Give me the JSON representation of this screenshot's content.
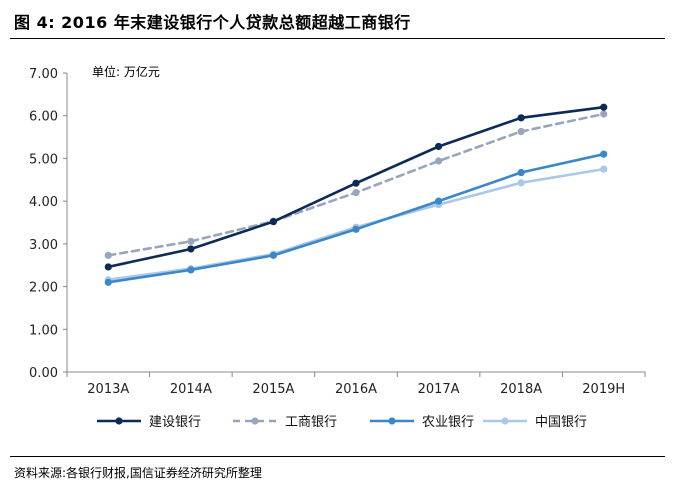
{
  "header": {
    "title": "图 4:  2016 年末建设银行个人贷款总额超越工商银行"
  },
  "footer": {
    "source": "资料来源:各银行财报,国信证券经济研究所整理"
  },
  "chart_data": {
    "type": "line",
    "title": "",
    "unit_label": "单位: 万亿元",
    "xlabel": "",
    "ylabel": "",
    "categories": [
      "2013A",
      "2014A",
      "2015A",
      "2016A",
      "2017A",
      "2018A",
      "2019H"
    ],
    "ylim": [
      0,
      7
    ],
    "yticks": [
      "0.00",
      "1.00",
      "2.00",
      "3.00",
      "4.00",
      "5.00",
      "6.00",
      "7.00"
    ],
    "grid": false,
    "legend_position": "bottom",
    "series": [
      {
        "name": "建设银行",
        "color": "#0d2b57",
        "dashed": false,
        "values": [
          2.46,
          2.88,
          3.52,
          4.42,
          5.28,
          5.95,
          6.2
        ]
      },
      {
        "name": "工商银行",
        "color": "#98a6bd",
        "dashed": true,
        "values": [
          2.73,
          3.06,
          3.53,
          4.2,
          4.94,
          5.63,
          6.04
        ]
      },
      {
        "name": "农业银行",
        "color": "#3b87c8",
        "dashed": false,
        "values": [
          2.1,
          2.39,
          2.73,
          3.34,
          4.0,
          4.67,
          5.1
        ]
      },
      {
        "name": "中国银行",
        "color": "#a9c8ea",
        "dashed": false,
        "values": [
          2.16,
          2.42,
          2.76,
          3.39,
          3.92,
          4.43,
          4.75
        ]
      }
    ]
  }
}
